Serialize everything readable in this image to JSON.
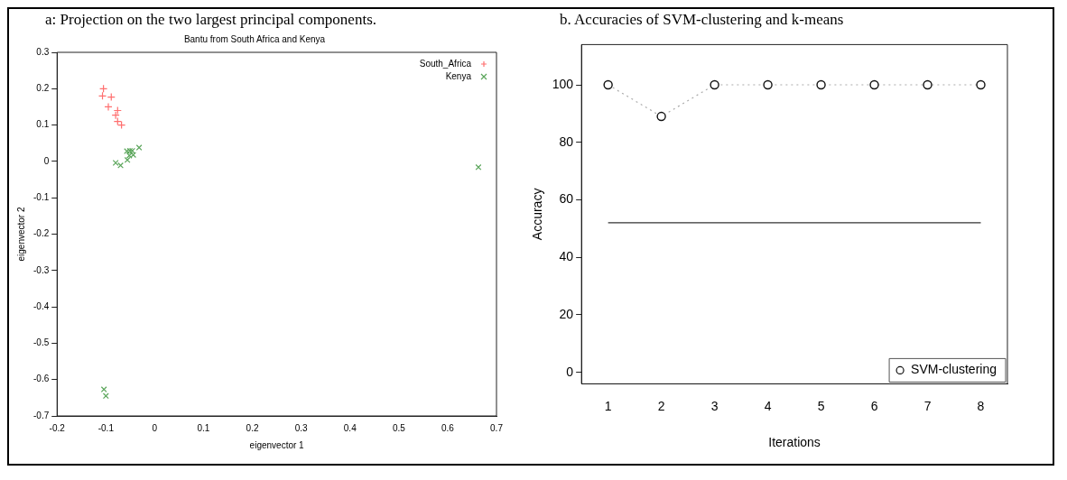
{
  "chart_data": [
    {
      "type": "scatter",
      "title": "Bantu from South Africa and Kenya",
      "annotations": [
        "a: Projection on the two largest principal components."
      ],
      "xlabel": "eigenvector 1",
      "ylabel": "eigenvector 2",
      "xlim": [
        -0.2,
        0.7
      ],
      "ylim": [
        -0.7,
        0.3
      ],
      "xticks": [
        -0.2,
        -0.1,
        0,
        0.1,
        0.2,
        0.3,
        0.4,
        0.5,
        0.6,
        0.7
      ],
      "yticks": [
        -0.7,
        -0.6,
        -0.5,
        -0.4,
        -0.3,
        -0.2,
        -0.1,
        0,
        0.1,
        0.2,
        0.3
      ],
      "grid": false,
      "legend": "top right",
      "series": [
        {
          "name": "South_Africa",
          "color": "#ff6f6f",
          "marker": "plus",
          "x": [
            -0.105,
            -0.107,
            -0.089,
            -0.095,
            -0.076,
            -0.08,
            -0.076,
            -0.068
          ],
          "values": [
            0.2,
            0.18,
            0.177,
            0.15,
            0.14,
            0.127,
            0.11,
            0.1
          ]
        },
        {
          "name": "Kenya",
          "color": "#5aa55a",
          "marker": "cross",
          "x": [
            -0.08,
            -0.07,
            -0.057,
            -0.056,
            -0.051,
            -0.046,
            -0.052,
            -0.044,
            -0.032,
            0.663,
            -0.104,
            -0.1
          ],
          "values": [
            -0.004,
            -0.011,
            0.028,
            0.004,
            0.029,
            0.029,
            0.016,
            0.018,
            0.038,
            -0.016,
            -0.627,
            -0.645
          ]
        }
      ]
    },
    {
      "type": "line",
      "title": "b. Accuracies of SVM-clustering and k-means",
      "xlabel": "Iterations",
      "ylabel": "Accuracy",
      "categories": [
        "1",
        "2",
        "3",
        "4",
        "5",
        "6",
        "7",
        "8"
      ],
      "ylim": [
        -4,
        114
      ],
      "yticks": [
        0,
        20,
        40,
        60,
        80,
        100
      ],
      "grid": false,
      "legend": "bottom right",
      "series": [
        {
          "name": "SVM-clustering",
          "color": "#aaaaaa",
          "marker": "circle",
          "line_style": "dotted",
          "values": [
            100,
            89,
            100,
            100,
            100,
            100,
            100,
            100
          ]
        },
        {
          "color": "#333333",
          "marker": "none",
          "line_style": "solid",
          "values": [
            52,
            52,
            52,
            52,
            52,
            52,
            52,
            52
          ]
        }
      ]
    }
  ]
}
